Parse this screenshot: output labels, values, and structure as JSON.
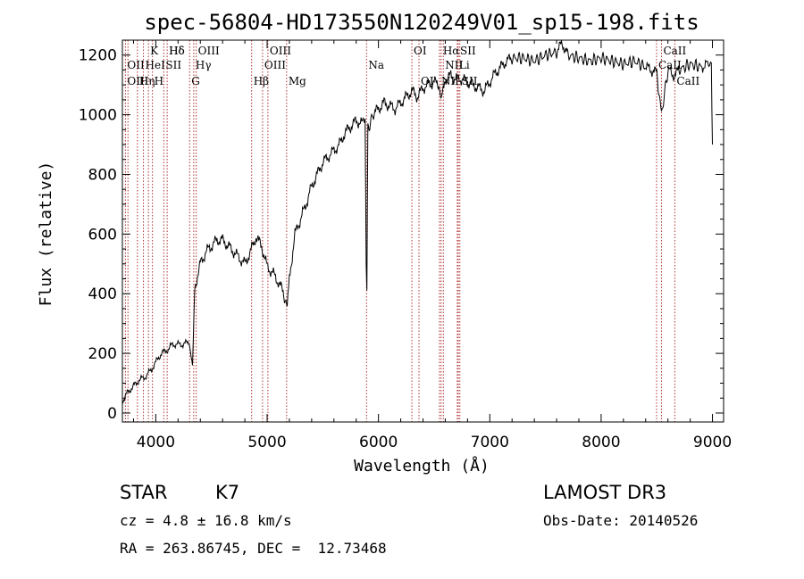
{
  "chart_data": {
    "type": "line",
    "title": "spec-56804-HD173550N120249V01_sp15-198.fits",
    "xlabel": "Wavelength (Å)",
    "ylabel": "Flux (relative)",
    "xlim": [
      3700,
      9100
    ],
    "ylim": [
      -30,
      1250
    ],
    "xticks": [
      4000,
      5000,
      6000,
      7000,
      8000,
      9000
    ],
    "yticks": [
      0,
      200,
      400,
      600,
      800,
      1000,
      1200
    ],
    "grid": false,
    "series": [
      {
        "x": [
          3700,
          3750,
          3800,
          3850,
          3900,
          3950,
          4000,
          4050,
          4100,
          4150,
          4200,
          4250,
          4300,
          4330,
          4350,
          4400,
          4450,
          4500,
          4550,
          4600,
          4650,
          4700,
          4750,
          4800,
          4850,
          4900,
          4950,
          5000,
          5050,
          5100,
          5150,
          5180,
          5200,
          5250,
          5300,
          5350,
          5400,
          5450,
          5500,
          5550,
          5600,
          5650,
          5700,
          5750,
          5800,
          5850,
          5880,
          5890,
          5896,
          5905,
          5950,
          6000,
          6050,
          6100,
          6150,
          6200,
          6250,
          6300,
          6350,
          6400,
          6450,
          6500,
          6550,
          6562,
          6600,
          6650,
          6700,
          6750,
          6800,
          6850,
          6900,
          6950,
          7000,
          7050,
          7100,
          7150,
          7200,
          7300,
          7400,
          7500,
          7600,
          7650,
          7700,
          7800,
          7900,
          8000,
          8100,
          8200,
          8300,
          8400,
          8450,
          8500,
          8542,
          8600,
          8662,
          8700,
          8800,
          8900,
          8950,
          8990,
          9000
        ],
        "values": [
          40,
          70,
          90,
          110,
          120,
          140,
          170,
          200,
          210,
          230,
          230,
          230,
          240,
          150,
          420,
          500,
          540,
          560,
          580,
          580,
          560,
          540,
          520,
          500,
          540,
          590,
          560,
          490,
          470,
          440,
          400,
          350,
          450,
          600,
          650,
          700,
          760,
          800,
          840,
          860,
          880,
          900,
          940,
          960,
          980,
          970,
          1000,
          500,
          420,
          950,
          1000,
          1020,
          1040,
          1030,
          1020,
          1040,
          1060,
          1080,
          1060,
          1090,
          1100,
          1110,
          1100,
          1040,
          1120,
          1130,
          1120,
          1120,
          1110,
          1100,
          1090,
          1080,
          1110,
          1140,
          1160,
          1180,
          1190,
          1190,
          1180,
          1200,
          1210,
          1240,
          1200,
          1190,
          1180,
          1190,
          1180,
          1170,
          1180,
          1160,
          1150,
          1140,
          1000,
          1150,
          1130,
          1150,
          1170,
          1160,
          1170,
          1170,
          900
        ]
      }
    ],
    "lines": {
      "top": [
        {
          "label": "Hδ",
          "x": 4102
        },
        {
          "label": "K",
          "x": 3934
        },
        {
          "label": "Hδ",
          "x": 4102
        },
        {
          "label": "OIII",
          "x": 4363
        },
        {
          "label": "OIII",
          "x": 5007
        },
        {
          "label": "OI",
          "x": 6300
        },
        {
          "label": "Hα",
          "x": 6563
        },
        {
          "label": "SII",
          "x": 6717
        },
        {
          "label": "CaII",
          "x": 8542
        }
      ],
      "second": [
        {
          "label": "OII",
          "x": 3727
        },
        {
          "label": "HeI",
          "x": 3889
        },
        {
          "label": "SII",
          "x": 4072
        },
        {
          "label": "Hγ",
          "x": 4341
        },
        {
          "label": "OIII",
          "x": 4959
        },
        {
          "label": "Na",
          "x": 5893
        },
        {
          "label": "NII",
          "x": 6583
        },
        {
          "label": "Li",
          "x": 6708
        },
        {
          "label": "CaII",
          "x": 8498
        }
      ],
      "third": [
        {
          "label": "OIII",
          "x": 3727
        },
        {
          "label": "Hη",
          "x": 3835
        },
        {
          "label": "H",
          "x": 3970
        },
        {
          "label": "G",
          "x": 4304
        },
        {
          "label": "Hβ",
          "x": 4861
        },
        {
          "label": "Mg",
          "x": 5175
        },
        {
          "label": "OI",
          "x": 6364
        },
        {
          "label": "NII",
          "x": 6548
        },
        {
          "label": "SII",
          "x": 6731
        },
        {
          "label": "CaII",
          "x": 8662
        }
      ],
      "positions": [
        3727,
        3750,
        3835,
        3889,
        3934,
        3970,
        4072,
        4102,
        4304,
        4341,
        4363,
        4861,
        4959,
        5007,
        5175,
        5893,
        6300,
        6364,
        6548,
        6563,
        6583,
        6708,
        6717,
        6731,
        8498,
        8542,
        8662
      ]
    }
  },
  "info": {
    "object_class": "STAR",
    "subclass": "K7",
    "survey": "LAMOST DR3",
    "redshift": "cz = 4.8 ± 16.8 km/s",
    "obs_date": "Obs-Date: 20140526",
    "coords": "RA = 263.86745, DEC =  12.73468"
  },
  "colors": {
    "line": "#000000",
    "marker": "#b03030"
  }
}
